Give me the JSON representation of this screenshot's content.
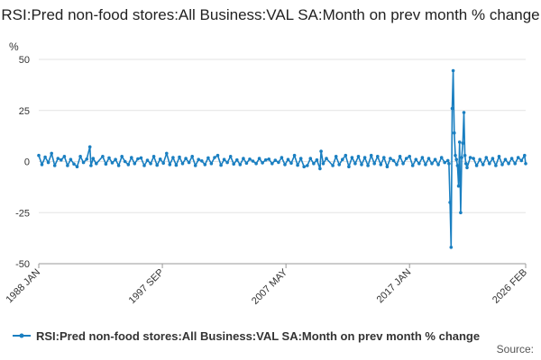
{
  "chart_data": {
    "type": "line",
    "title": "RSI:Pred non-food stores:All Business:VAL SA:Month on prev month % change",
    "ylabel": "%",
    "xlabel": "",
    "ylim": [
      -50,
      50
    ],
    "y_ticks": [
      50,
      25,
      0,
      -25,
      -50
    ],
    "x_tick_labels": [
      "1988 JAN",
      "1997 SEP",
      "2007 MAY",
      "2017 JAN",
      "2026 FEB"
    ],
    "x_range": [
      "1988 JAN",
      "2026 FEB"
    ],
    "grid": true,
    "legend_position": "bottom",
    "series": [
      {
        "name": "RSI:Pred non-food stores:All Business:VAL SA:Month on prev month % change",
        "color": "#1a7fc1",
        "points": [
          [
            "1988-01",
            3.0
          ],
          [
            "1988-04",
            -1.5
          ],
          [
            "1988-07",
            2.2
          ],
          [
            "1988-10",
            -0.5
          ],
          [
            "1989-01",
            4.0
          ],
          [
            "1989-04",
            -2.0
          ],
          [
            "1989-07",
            1.5
          ],
          [
            "1989-10",
            0.8
          ],
          [
            "1990-01",
            2.5
          ],
          [
            "1990-04",
            -2.0
          ],
          [
            "1990-07",
            1.0
          ],
          [
            "1990-10",
            -1.2
          ],
          [
            "1991-01",
            -2.5
          ],
          [
            "1991-04",
            2.5
          ],
          [
            "1991-07",
            -0.5
          ],
          [
            "1991-10",
            1.2
          ],
          [
            "1992-01",
            7.2
          ],
          [
            "1992-02",
            -2.0
          ],
          [
            "1992-04",
            1.5
          ],
          [
            "1992-07",
            -1.0
          ],
          [
            "1993-01",
            2.5
          ],
          [
            "1993-04",
            -1.2
          ],
          [
            "1993-07",
            1.8
          ],
          [
            "1993-10",
            -0.6
          ],
          [
            "1994-01",
            1.0
          ],
          [
            "1994-04",
            -2.0
          ],
          [
            "1994-07",
            2.5
          ],
          [
            "1994-10",
            0.0
          ],
          [
            "1995-01",
            -1.5
          ],
          [
            "1995-04",
            2.0
          ],
          [
            "1995-07",
            -1.0
          ],
          [
            "1995-10",
            1.3
          ],
          [
            "1996-01",
            1.8
          ],
          [
            "1996-04",
            -2.0
          ],
          [
            "1996-07",
            0.6
          ],
          [
            "1996-10",
            -1.0
          ],
          [
            "1997-01",
            2.5
          ],
          [
            "1997-04",
            -1.8
          ],
          [
            "1997-07",
            1.2
          ],
          [
            "1997-10",
            -0.8
          ],
          [
            "1998-01",
            4.0
          ],
          [
            "1998-04",
            -1.5
          ],
          [
            "1998-07",
            2.0
          ],
          [
            "1998-10",
            -1.8
          ],
          [
            "1999-01",
            2.2
          ],
          [
            "1999-04",
            -1.0
          ],
          [
            "1999-07",
            1.5
          ],
          [
            "1999-10",
            -0.5
          ],
          [
            "2000-01",
            2.5
          ],
          [
            "2000-04",
            -2.0
          ],
          [
            "2000-07",
            1.0
          ],
          [
            "2000-10",
            0.3
          ],
          [
            "2001-01",
            -1.5
          ],
          [
            "2001-04",
            1.8
          ],
          [
            "2001-07",
            -1.0
          ],
          [
            "2001-10",
            2.0
          ],
          [
            "2002-01",
            3.0
          ],
          [
            "2002-04",
            -1.8
          ],
          [
            "2002-07",
            1.0
          ],
          [
            "2002-10",
            -0.5
          ],
          [
            "2003-01",
            2.5
          ],
          [
            "2003-04",
            -1.2
          ],
          [
            "2003-07",
            0.8
          ],
          [
            "2003-10",
            -1.5
          ],
          [
            "2004-01",
            1.5
          ],
          [
            "2004-04",
            -0.8
          ],
          [
            "2004-07",
            1.2
          ],
          [
            "2004-10",
            0.2
          ],
          [
            "2005-01",
            -1.0
          ],
          [
            "2005-04",
            1.5
          ],
          [
            "2005-07",
            -0.6
          ],
          [
            "2005-10",
            0.8
          ],
          [
            "2006-01",
            1.2
          ],
          [
            "2006-04",
            -1.0
          ],
          [
            "2006-07",
            0.6
          ],
          [
            "2006-10",
            -0.4
          ],
          [
            "2007-01",
            2.0
          ],
          [
            "2007-04",
            -1.5
          ],
          [
            "2007-07",
            1.0
          ],
          [
            "2007-10",
            -0.8
          ],
          [
            "2008-01",
            3.0
          ],
          [
            "2008-04",
            -1.8
          ],
          [
            "2008-07",
            1.5
          ],
          [
            "2008-10",
            -2.5
          ],
          [
            "2009-01",
            -2.0
          ],
          [
            "2009-04",
            1.5
          ],
          [
            "2009-07",
            -1.0
          ],
          [
            "2009-10",
            0.8
          ],
          [
            "2010-01",
            -3.5
          ],
          [
            "2010-02",
            5.0
          ],
          [
            "2010-04",
            -1.0
          ],
          [
            "2010-07",
            1.5
          ],
          [
            "2011-01",
            -2.0
          ],
          [
            "2011-04",
            2.5
          ],
          [
            "2011-07",
            -1.5
          ],
          [
            "2011-10",
            1.0
          ],
          [
            "2012-01",
            3.0
          ],
          [
            "2012-04",
            -2.5
          ],
          [
            "2012-07",
            2.0
          ],
          [
            "2012-10",
            -1.0
          ],
          [
            "2013-01",
            2.5
          ],
          [
            "2013-04",
            -1.5
          ],
          [
            "2013-07",
            2.0
          ],
          [
            "2013-10",
            -2.0
          ],
          [
            "2014-01",
            3.0
          ],
          [
            "2014-04",
            -1.0
          ],
          [
            "2014-07",
            2.5
          ],
          [
            "2014-10",
            -1.5
          ],
          [
            "2015-01",
            2.0
          ],
          [
            "2015-04",
            -2.5
          ],
          [
            "2015-07",
            1.5
          ],
          [
            "2015-10",
            0.5
          ],
          [
            "2016-01",
            -1.5
          ],
          [
            "2016-04",
            2.5
          ],
          [
            "2016-07",
            -1.0
          ],
          [
            "2016-10",
            1.5
          ],
          [
            "2017-01",
            2.5
          ],
          [
            "2017-04",
            -2.0
          ],
          [
            "2017-07",
            1.0
          ],
          [
            "2017-10",
            -1.0
          ],
          [
            "2018-01",
            2.0
          ],
          [
            "2018-04",
            -1.5
          ],
          [
            "2018-07",
            1.5
          ],
          [
            "2018-10",
            -1.0
          ],
          [
            "2019-01",
            1.0
          ],
          [
            "2019-04",
            -1.5
          ],
          [
            "2019-07",
            2.0
          ],
          [
            "2019-10",
            -0.5
          ],
          [
            "2020-01",
            0.5
          ],
          [
            "2020-02",
            -1.0
          ],
          [
            "2020-03",
            -20.0
          ],
          [
            "2020-04",
            -42.0
          ],
          [
            "2020-05",
            26.0
          ],
          [
            "2020-06",
            44.5
          ],
          [
            "2020-07",
            14.0
          ],
          [
            "2020-08",
            3.0
          ],
          [
            "2020-09",
            1.0
          ],
          [
            "2020-10",
            -2.0
          ],
          [
            "2020-11",
            -12.0
          ],
          [
            "2020-12",
            9.5
          ],
          [
            "2021-01",
            -25.0
          ],
          [
            "2021-02",
            2.0
          ],
          [
            "2021-03",
            9.0
          ],
          [
            "2021-04",
            24.0
          ],
          [
            "2021-05",
            3.0
          ],
          [
            "2021-06",
            -1.0
          ],
          [
            "2021-07",
            -3.0
          ],
          [
            "2021-10",
            2.0
          ],
          [
            "2022-01",
            1.5
          ],
          [
            "2022-04",
            -2.0
          ],
          [
            "2022-07",
            1.0
          ],
          [
            "2022-10",
            -1.5
          ],
          [
            "2023-01",
            2.0
          ],
          [
            "2023-04",
            -1.0
          ],
          [
            "2023-07",
            1.5
          ],
          [
            "2023-10",
            -2.0
          ],
          [
            "2024-01",
            2.5
          ],
          [
            "2024-04",
            -1.5
          ],
          [
            "2024-07",
            1.0
          ],
          [
            "2024-10",
            -1.0
          ],
          [
            "2025-01",
            1.5
          ],
          [
            "2025-04",
            -1.0
          ],
          [
            "2025-07",
            2.0
          ],
          [
            "2025-10",
            0.5
          ],
          [
            "2026-01",
            3.0
          ],
          [
            "2026-02",
            -1.0
          ]
        ]
      }
    ],
    "source_label": "Source:"
  }
}
